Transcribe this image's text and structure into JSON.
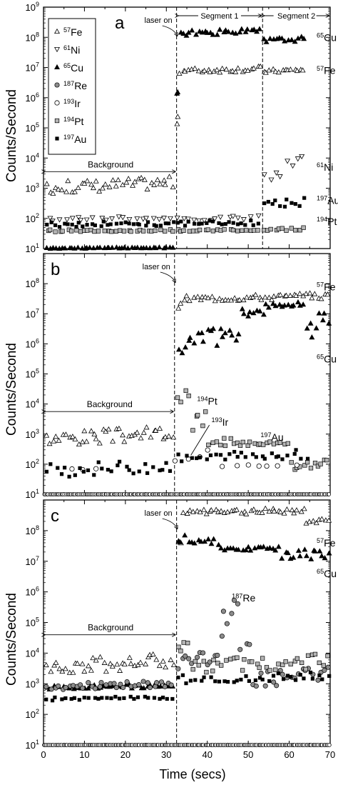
{
  "figure": {
    "xlabel": "Time (secs)",
    "ylabel": "Counts/Second",
    "xticks": [
      "0",
      "10",
      "20",
      "30",
      "40",
      "50",
      "60",
      "70"
    ]
  },
  "chart_data": [
    {
      "type": "scatter",
      "panel_label": "a",
      "xlim": [
        0,
        70
      ],
      "ylim_log10": [
        1,
        9
      ],
      "y_scale": "log",
      "yticks": [
        1,
        2,
        3,
        4,
        5,
        6,
        7,
        8,
        9
      ],
      "legend": [
        {
          "iso": "57",
          "el": "Fe",
          "marker": "tri-up-open"
        },
        {
          "iso": "61",
          "el": "Ni",
          "marker": "tri-down-open"
        },
        {
          "iso": "65",
          "el": "Cu",
          "marker": "tri-up-filled"
        },
        {
          "iso": "187",
          "el": "Re",
          "marker": "circle-gray"
        },
        {
          "iso": "193",
          "el": "Ir",
          "marker": "circle-open"
        },
        {
          "iso": "194",
          "el": "Pt",
          "marker": "square-gray"
        },
        {
          "iso": "197",
          "el": "Au",
          "marker": "square-filled"
        }
      ],
      "vlines": [
        32.5,
        53.5
      ],
      "annotations": {
        "laser_on": "laser on",
        "segment1": "Segment 1",
        "segment2": "Segment 2",
        "background": "Background",
        "labels": [
          {
            "iso": "65",
            "el": "Cu",
            "x": 66,
            "y": 8.0
          },
          {
            "iso": "57",
            "el": "Fe",
            "x": 66,
            "y": 6.9
          },
          {
            "iso": "61",
            "el": "Ni",
            "x": 66,
            "y": 3.7
          },
          {
            "iso": "197",
            "el": "Au",
            "x": 66,
            "y": 2.6
          },
          {
            "iso": "194",
            "el": "Pt",
            "x": 66,
            "y": 1.9
          }
        ]
      },
      "series": [
        {
          "iso": "57",
          "el": "Fe",
          "marker": "tri-up-open",
          "segments": [
            [
              0.5,
              32,
              2.8,
              3.4
            ],
            [
              32.5,
              33,
              5.0,
              5.7
            ],
            [
              33,
              53.5,
              6.8,
              7.05
            ],
            [
              53.5,
              64,
              6.8,
              7.0
            ]
          ],
          "density": 1.3
        },
        {
          "iso": "61",
          "el": "Ni",
          "marker": "tri-down-open",
          "segments": [
            [
              0.5,
              32,
              1.9,
              2.1
            ],
            [
              32,
              53,
              1.9,
              2.15
            ],
            [
              53.5,
              59,
              3.2,
              3.6
            ],
            [
              59,
              64,
              3.6,
              4.1
            ]
          ],
          "density": 0.7
        },
        {
          "iso": "65",
          "el": "Cu",
          "marker": "tri-up-filled",
          "segments": [
            [
              0.5,
              32,
              1.0,
              1.05
            ],
            [
              32.5,
              33,
              6.1,
              6.2
            ],
            [
              33,
              53.5,
              8.05,
              8.3
            ],
            [
              53.5,
              64,
              7.8,
              8.05
            ]
          ],
          "density": 1.3
        },
        {
          "iso": "194",
          "el": "Pt",
          "marker": "square-gray",
          "segments": [
            [
              0.5,
              53,
              1.55,
              1.65
            ],
            [
              53.5,
              64,
              1.55,
              1.7
            ]
          ],
          "density": 1.0
        },
        {
          "iso": "197",
          "el": "Au",
          "marker": "square-filled",
          "segments": [
            [
              0.5,
              53,
              1.7,
              1.95
            ],
            [
              53.5,
              64,
              2.3,
              2.7
            ]
          ],
          "density": 1.0
        }
      ]
    },
    {
      "type": "scatter",
      "panel_label": "b",
      "xlim": [
        0,
        70
      ],
      "ylim_log10": [
        1,
        9
      ],
      "y_scale": "log",
      "yticks": [
        1,
        2,
        3,
        4,
        5,
        6,
        7,
        8
      ],
      "vlines": [
        32
      ],
      "annotations": {
        "laser_on": "laser on",
        "background": "Background",
        "labels": [
          {
            "iso": "57",
            "el": "Fe",
            "x": 66,
            "y": 7.9
          },
          {
            "iso": "65",
            "el": "Cu",
            "x": 66,
            "y": 5.5
          },
          {
            "iso": "194",
            "el": "Pt",
            "x": 37.5,
            "y": 4.1
          },
          {
            "iso": "193",
            "el": "Ir",
            "x": 41,
            "y": 3.4
          },
          {
            "iso": "197",
            "el": "Au",
            "x": 53,
            "y": 2.9
          }
        ]
      },
      "series": [
        {
          "iso": "57",
          "el": "Fe",
          "marker": "tri-up-open",
          "segments": [
            [
              0.5,
              32,
              2.6,
              3.3
            ],
            [
              32.5,
              34,
              6.5,
              7.5
            ],
            [
              34,
              70,
              7.4,
              7.7
            ]
          ],
          "density": 1.3
        },
        {
          "iso": "65",
          "el": "Cu",
          "marker": "tri-up-filled",
          "segments": [
            [
              32.5,
              35,
              5.6,
              6.0
            ],
            [
              35,
              42,
              5.8,
              6.6
            ],
            [
              42,
              48,
              5.9,
              6.7
            ],
            [
              48,
              54,
              6.8,
              7.3
            ],
            [
              54,
              64,
              7.2,
              7.4
            ],
            [
              64,
              70,
              6.1,
              7.2
            ]
          ],
          "density": 1.3
        },
        {
          "iso": "194",
          "el": "Pt",
          "marker": "square-gray",
          "segments": [
            [
              32.5,
              36,
              4.0,
              4.5
            ],
            [
              36,
              40,
              3.1,
              3.8
            ],
            [
              40,
              47,
              2.5,
              3.0
            ],
            [
              47,
              60,
              2.6,
              2.8
            ],
            [
              60,
              70,
              1.8,
              2.2
            ]
          ],
          "density": 1.2
        },
        {
          "iso": "193",
          "el": "Ir",
          "marker": "circle-open",
          "segments": [
            [
              5,
              14,
              1.8,
              1.9
            ],
            [
              32,
              42,
              2.0,
              2.5
            ],
            [
              42,
              63,
              1.9,
              2.0
            ]
          ],
          "density": 0.35
        },
        {
          "iso": "197",
          "el": "Au",
          "marker": "square-filled",
          "segments": [
            [
              0.5,
              32,
              1.55,
              2.2
            ],
            [
              32.5,
              65,
              2.0,
              2.5
            ]
          ],
          "density": 0.9
        },
        {
          "iso": "base",
          "el": "",
          "marker": "baseline",
          "segments": [
            [
              0,
              70,
              1.0,
              1.0
            ]
          ],
          "density": 3.0
        }
      ]
    },
    {
      "type": "scatter",
      "panel_label": "c",
      "xlim": [
        0,
        70
      ],
      "ylim_log10": [
        1,
        9
      ],
      "y_scale": "log",
      "yticks": [
        1,
        2,
        3,
        4,
        5,
        6,
        7,
        8
      ],
      "xticks": [
        0,
        10,
        20,
        30,
        40,
        50,
        60,
        70
      ],
      "vlines": [
        32.5
      ],
      "annotations": {
        "laser_on": "laser on",
        "background": "Background",
        "labels": [
          {
            "iso": "57",
            "el": "Fe",
            "x": 66,
            "y": 7.6
          },
          {
            "iso": "65",
            "el": "Cu",
            "x": 66,
            "y": 6.6
          },
          {
            "iso": "187",
            "el": "Re",
            "x": 46,
            "y": 5.8
          }
        ]
      },
      "series": [
        {
          "iso": "57",
          "el": "Fe",
          "marker": "tri-up-open",
          "segments": [
            [
              0.5,
              32,
              3.3,
              4.0
            ],
            [
              32.5,
              34,
              7.0,
              8.3
            ],
            [
              34,
              64,
              8.5,
              8.75
            ],
            [
              64,
              70,
              8.2,
              8.4
            ]
          ],
          "density": 1.3
        },
        {
          "iso": "65",
          "el": "Cu",
          "marker": "tri-up-filled",
          "segments": [
            [
              0.5,
              32,
              2.8,
              3.0
            ],
            [
              32.5,
              35,
              7.5,
              8.3
            ],
            [
              35,
              43,
              7.4,
              7.8
            ],
            [
              43,
              58,
              7.3,
              7.5
            ],
            [
              58,
              70,
              6.9,
              7.5
            ]
          ],
          "density": 1.3
        },
        {
          "iso": "187",
          "el": "Re",
          "marker": "circle-gray",
          "segments": [
            [
              0.5,
              32,
              2.8,
              3.1
            ],
            [
              32.5,
              43,
              3.4,
              4.2
            ],
            [
              43,
              48,
              4.5,
              5.9
            ],
            [
              48,
              51,
              4.0,
              4.8
            ],
            [
              51,
              70,
              2.8,
              3.6
            ]
          ],
          "density": 1.1
        },
        {
          "iso": "194",
          "el": "Pt",
          "marker": "square-gray",
          "segments": [
            [
              32.5,
              36,
              4.0,
              4.6
            ],
            [
              36,
              70,
              3.3,
              4.0
            ]
          ],
          "density": 1.1
        },
        {
          "iso": "197",
          "el": "Au",
          "marker": "square-filled",
          "segments": [
            [
              0.5,
              32,
              2.45,
              2.6
            ],
            [
              32.5,
              70,
              3.0,
              3.4
            ]
          ],
          "density": 0.9
        },
        {
          "iso": "base",
          "el": "",
          "marker": "baseline",
          "segments": [
            [
              0,
              70,
              1.0,
              1.0
            ]
          ],
          "density": 3.0
        }
      ]
    }
  ]
}
